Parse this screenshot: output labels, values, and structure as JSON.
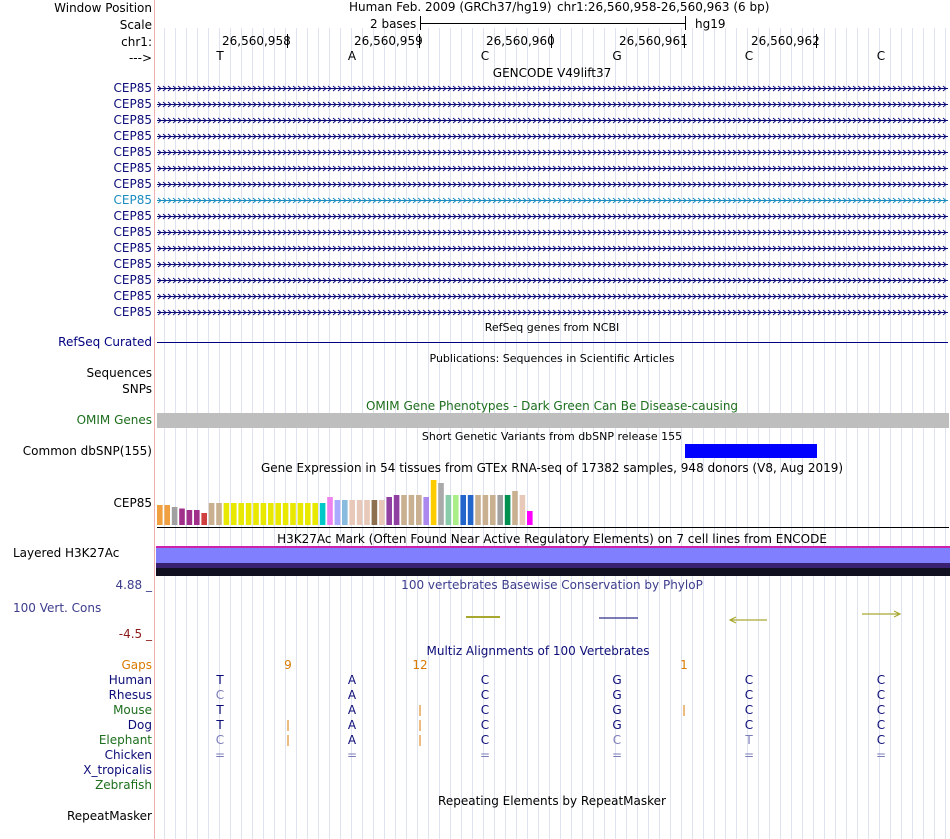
{
  "colors": {
    "navy": "#000080",
    "gene": "#0c0c78",
    "selected_gene": "#1a8cbf",
    "omim_green": "#1d6e1d",
    "gaps": "#d97a00",
    "snp_block": "#0000ff",
    "conservation_label": "#3c3c8c",
    "h3k27ac": "#8080ff"
  },
  "header": {
    "window_position_label": "Window Position",
    "scale_label": "Scale",
    "chr_label": "chr1:",
    "strand_label": "--->",
    "assembly": "Human Feb. 2009 (GRCh37/hg19)",
    "position": "chr1:26,560,958-26,560,963 (6 bp)",
    "scale_text": "2 bases",
    "scale_db": "hg19",
    "coords": [
      "26,560,958",
      "26,560,959",
      "26,560,960",
      "26,560,961",
      "26,560,962"
    ],
    "bases": [
      "T",
      "A",
      "C",
      "G",
      "C",
      "C"
    ]
  },
  "gencode": {
    "title": "GENCODE V49lift37",
    "transcripts": [
      "CEP85",
      "CEP85",
      "CEP85",
      "CEP85",
      "CEP85",
      "CEP85",
      "CEP85",
      "CEP85",
      "CEP85",
      "CEP85",
      "CEP85",
      "CEP85",
      "CEP85",
      "CEP85",
      "CEP85"
    ],
    "selected_index": 7
  },
  "refseq": {
    "title": "RefSeq genes from NCBI",
    "label": "RefSeq Curated"
  },
  "publications": {
    "title": "Publications: Sequences in Scientific Articles",
    "label": "Sequences"
  },
  "snps_label": "SNPs",
  "omim": {
    "title": "OMIM Gene Phenotypes - Dark Green Can Be Disease-causing",
    "label": "OMIM Genes"
  },
  "dbsnp": {
    "title": "Short Genetic Variants from dbSNP release 155",
    "label": "Common dbSNP(155)"
  },
  "gtex": {
    "title": "Gene Expression in 54 tissues from GTEx RNA-seq of 17382 samples, 948 donors (V8, Aug 2019)",
    "label": "CEP85",
    "colors": [
      "#f0a040",
      "#f0a040",
      "#a0a0a0",
      "#a0308a",
      "#a0308a",
      "#a0308a",
      "#d04040",
      "#c8b090",
      "#c8b090",
      "#e8e800",
      "#e8e800",
      "#e8e800",
      "#e8e800",
      "#e8e800",
      "#e8e800",
      "#e8e800",
      "#e8e800",
      "#e8e800",
      "#e8e800",
      "#e8e800",
      "#e8e800",
      "#e8e800",
      "#00c8c8",
      "#ee82ee",
      "#aaaaff",
      "#88bbdd",
      "#e8c8b8",
      "#e8c8b8",
      "#e8c8b8",
      "#8c7050",
      "#e8c8b8",
      "#9040a0",
      "#9040a0",
      "#c8b090",
      "#c8b090",
      "#c8b090",
      "#aa88ee",
      "#ffcc00",
      "#aaaaaa",
      "#88ccaa",
      "#aaee88",
      "#2266cc",
      "#2266cc",
      "#c8b090",
      "#c8b090",
      "#c8b090",
      "#a0a0a0",
      "#009050",
      "#c8b090",
      "#e8c8b8",
      "#ff00ff"
    ],
    "values": [
      0.4,
      0.4,
      0.36,
      0.33,
      0.3,
      0.3,
      0.24,
      0.44,
      0.44,
      0.44,
      0.44,
      0.44,
      0.44,
      0.44,
      0.44,
      0.44,
      0.44,
      0.44,
      0.44,
      0.44,
      0.44,
      0.44,
      0.44,
      0.56,
      0.5,
      0.5,
      0.5,
      0.5,
      0.5,
      0.5,
      0.5,
      0.56,
      0.6,
      0.6,
      0.6,
      0.6,
      0.56,
      0.9,
      0.84,
      0.6,
      0.6,
      0.6,
      0.6,
      0.6,
      0.6,
      0.6,
      0.6,
      0.6,
      0.68,
      0.6,
      0.28
    ]
  },
  "h3k27ac": {
    "title": "H3K27Ac Mark (Often Found Near Active Regulatory Elements) on 7 cell lines from ENCODE",
    "label": "Layered H3K27Ac"
  },
  "conservation": {
    "title": "100 vertebrates Basewise Conservation by PhyloP",
    "label": "100 Vert. Cons",
    "max": "4.88 _",
    "min": "-4.5 _"
  },
  "multiz": {
    "title": "Multiz Alignments of 100 Vertebrates",
    "gaps_label": "Gaps",
    "gap_counts": [
      "9",
      "12",
      "1"
    ],
    "species": [
      {
        "name": "Human",
        "color": "#0c0c78",
        "bases": [
          "T",
          "A",
          "C",
          "G",
          "C",
          "C"
        ]
      },
      {
        "name": "Rhesus",
        "color": "#0c0c78",
        "bases": [
          "C",
          "A",
          "C",
          "G",
          "C",
          "C"
        ]
      },
      {
        "name": "Mouse",
        "color": "#1d6e1d",
        "bases": [
          "T",
          "A",
          "C",
          "G",
          "C",
          "C"
        ]
      },
      {
        "name": "Dog",
        "color": "#0c0c78",
        "bases": [
          "T",
          "A",
          "C",
          "G",
          "C",
          "C"
        ]
      },
      {
        "name": "Elephant",
        "color": "#1d6e1d",
        "bases": [
          "C",
          "A",
          "C",
          "C",
          "T",
          "C"
        ]
      },
      {
        "name": "Chicken",
        "color": "#0c0c78",
        "bases": [
          "=",
          "=",
          "=",
          "=",
          "=",
          "="
        ]
      },
      {
        "name": "X_tropicalis",
        "color": "#0c0c78",
        "bases": []
      },
      {
        "name": "Zebrafish",
        "color": "#1d6e1d",
        "bases": []
      }
    ]
  },
  "repeatmasker": {
    "title": "Repeating Elements by RepeatMasker",
    "label": "RepeatMasker"
  }
}
